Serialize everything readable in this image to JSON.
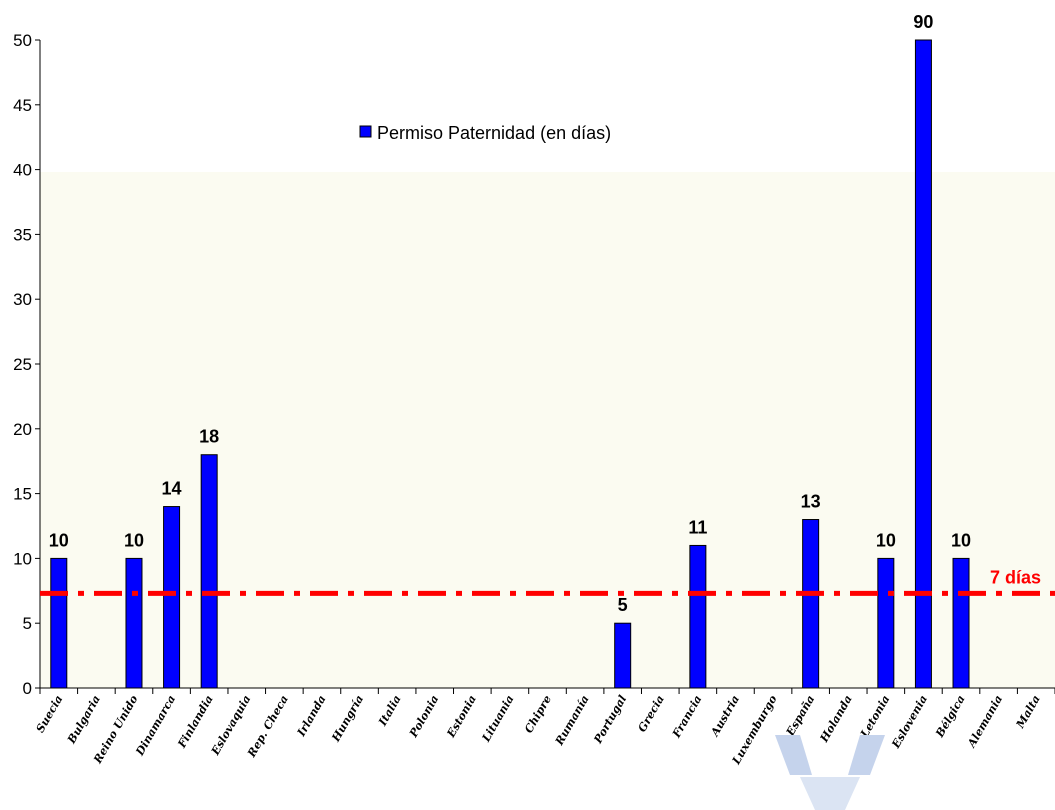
{
  "colors": {
    "bar": "#0000ff",
    "bar_stroke": "#000000",
    "reference_line": "#ff0000",
    "plot_band": "#fbfbf1",
    "watermark": "#c5d3ec"
  },
  "watermark_icon": "logo-watermark-icon",
  "chart_data": {
    "type": "bar",
    "title": "",
    "xlabel": "",
    "ylabel": "",
    "ylim": [
      0,
      50
    ],
    "yticks": [
      0,
      5,
      10,
      15,
      20,
      25,
      30,
      35,
      40,
      45,
      50
    ],
    "grid": false,
    "legend_position": "top-center",
    "categories": [
      "Suecia",
      "Bulgaria",
      "Reino Unido",
      "Dinamarca",
      "Finlandia",
      "Eslovaquia",
      "Rep. Checa",
      "Irlanda",
      "Hungría",
      "Italia",
      "Polonia",
      "Estonia",
      "Lituania",
      "Chipre",
      "Rumanía",
      "Portugal",
      "Grecia",
      "Francia",
      "Austria",
      "Luxemburgo",
      "España",
      "Holanda",
      "Letonia",
      "Eslovenia",
      "Bélgica",
      "Alemania",
      "Malta"
    ],
    "series": [
      {
        "name": "Permiso Paternidad (en días)",
        "values": [
          10,
          0,
          10,
          14,
          18,
          0,
          0,
          0,
          0,
          0,
          0,
          0,
          0,
          0,
          0,
          5,
          0,
          11,
          0,
          0,
          13,
          0,
          10,
          90,
          10,
          0,
          0
        ],
        "data_labels": [
          "10",
          "",
          "10",
          "14",
          "18",
          "",
          "",
          "",
          "",
          "",
          "",
          "",
          "",
          "",
          "",
          "5",
          "",
          "11",
          "",
          "",
          "13",
          "",
          "10",
          "90",
          "10",
          "",
          ""
        ]
      }
    ],
    "reference_line": {
      "value": 7.3,
      "label": "7 días"
    }
  }
}
